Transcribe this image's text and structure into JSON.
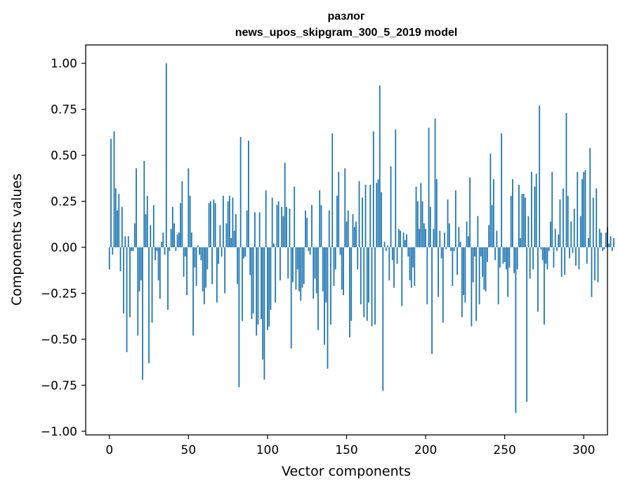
{
  "chart_data": {
    "type": "bar",
    "title_line1": "разлог",
    "title_line2": "news_upos_skipgram_300_5_2019 model",
    "xlabel": "Vector components",
    "ylabel": "Components values",
    "xlim": [
      -15,
      315
    ],
    "ylim": [
      -1.02,
      1.1
    ],
    "xticks": [
      0,
      50,
      100,
      150,
      200,
      250,
      300
    ],
    "xtick_labels": [
      "0",
      "50",
      "100",
      "150",
      "200",
      "250",
      "300"
    ],
    "yticks": [
      1.0,
      0.75,
      0.5,
      0.25,
      0.0,
      -0.25,
      -0.5,
      -0.75,
      -1.0
    ],
    "ytick_labels": [
      "1.00",
      "0.75",
      "0.50",
      "0.25",
      "0.00",
      "−0.25",
      "−0.50",
      "−0.75",
      "−1.00"
    ],
    "bar_color": "#1f77b4",
    "values": [
      -0.12,
      0.59,
      -0.04,
      0.63,
      0.32,
      0.2,
      0.29,
      -0.13,
      0.22,
      -0.36,
      0.06,
      -0.57,
      0.06,
      -0.38,
      -0.02,
      -0.02,
      0.13,
      0.43,
      -0.48,
      -0.24,
      -0.18,
      -0.72,
      0.47,
      0.18,
      0.28,
      -0.63,
      0.12,
      -0.41,
      0.23,
      -0.07,
      -0.02,
      -0.18,
      -0.28,
      0.03,
      0.08,
      -0.04,
      1.0,
      -0.34,
      -0.02,
      0.1,
      0.22,
      0.13,
      -0.02,
      0.07,
      0.08,
      0.24,
      0.36,
      -0.16,
      -0.05,
      -0.26,
      0.43,
      0.28,
      0.08,
      -0.48,
      -0.11,
      -0.21,
      0.01,
      -0.04,
      -0.07,
      -0.24,
      -0.31,
      -0.22,
      -0.12,
      0.24,
      0.25,
      -0.2,
      0.26,
      0.24,
      -0.3,
      -0.09,
      0.12,
      -0.05,
      0.28,
      -0.25,
      0.13,
      0.25,
      0.28,
      0.05,
      0.27,
      0.09,
      0.18,
      -0.2,
      -0.76,
      0.6,
      -0.4,
      -0.06,
      -0.05,
      0.2,
      0.58,
      -0.15,
      -0.39,
      -0.36,
      0.19,
      -0.48,
      -0.42,
      0.19,
      -0.39,
      -0.61,
      -0.72,
      0.31,
      -0.45,
      -0.43,
      -0.34,
      0.27,
      0.02,
      -0.3,
      0.23,
      0.25,
      -0.18,
      0.22,
      0.17,
      0.46,
      0.22,
      -0.17,
      0.21,
      -0.55,
      -0.19,
      0.33,
      -0.23,
      -0.12,
      -0.24,
      -0.29,
      -0.22,
      -0.2,
      0.2,
      0.16,
      -0.02,
      -0.04,
      0.23,
      -0.28,
      -0.17,
      -0.25,
      -0.45,
      0.31,
      0.23,
      -0.24,
      -0.53,
      -0.3,
      -0.66,
      0.2,
      -0.42,
      0.62,
      -0.21,
      -0.12,
      0.28,
      0.41,
      -0.04,
      -0.23,
      -0.26,
      0.43,
      0.14,
      0.2,
      -0.49,
      -0.4,
      0.18,
      0.11,
      0.14,
      -0.12,
      0.36,
      -0.31,
      0.27,
      -0.38,
      0.34,
      -0.4,
      -0.3,
      0.34,
      -0.43,
      0.63,
      -0.42,
      0.35,
      0.37,
      0.88,
      0.3,
      -0.78,
      0.03,
      -0.02,
      0.01,
      -0.18,
      0.44,
      -0.07,
      -0.22,
      0.64,
      -0.09,
      0.1,
      0.09,
      -0.32,
      0.08,
      0.04,
      0.07,
      -0.05,
      -0.18,
      -0.22,
      -0.11,
      -0.21,
      0.33,
      0.25,
      0.1,
      0.35,
      0.25,
      0.13,
      0.1,
      -0.31,
      0.65,
      0.22,
      -0.58,
      0.1,
      0.7,
      0.37,
      -0.27,
      0.09,
      -0.06,
      -0.41,
      0.08,
      -0.01,
      0.26,
      0.13,
      -0.02,
      -0.21,
      -0.02,
      0.31,
      -0.15,
      0.11,
      0.03,
      -0.38,
      -0.26,
      -0.3,
      0.14,
      0.06,
      0.38,
      -0.43,
      -0.19,
      -0.05,
      -0.4,
      0.17,
      -0.31,
      -0.05,
      -0.16,
      -0.23,
      -0.24,
      -0.08,
      0.12,
      0.51,
      0.23,
      0.37,
      -0.07,
      0.09,
      -0.31,
      -0.11,
      0.62,
      -0.09,
      -0.08,
      -0.12,
      -0.27,
      -0.11,
      0.28,
      0.37,
      -0.14,
      -0.9,
      -0.12,
      0.34,
      0.05,
      0.29,
      0.29,
      0.27,
      -0.84,
      0.17,
      -0.17,
      0.41,
      -0.12,
      0.33,
      0.4,
      -0.35,
      0.77,
      -0.01,
      -0.07,
      -0.42,
      -0.09,
      -0.12,
      -0.02,
      0.14,
      0.41,
      -0.11,
      0.1,
      -0.02,
      0.07,
      0.26,
      -0.16,
      0.32,
      -0.15,
      0.73,
      0.28,
      -0.06,
      0.14,
      -0.03,
      0.21,
      -0.1,
      0.41,
      -0.12,
      0.17,
      0.37,
      0.41,
      0.42,
      -0.09,
      0.05,
      0.54,
      -0.27,
      0.27,
      -0.18,
      0.32,
      -0.19,
      0.1,
      0.08,
      -0.02,
      -0.01,
      0.08,
      0.11,
      0.02,
      0.06,
      -0.02,
      0.05
    ]
  }
}
